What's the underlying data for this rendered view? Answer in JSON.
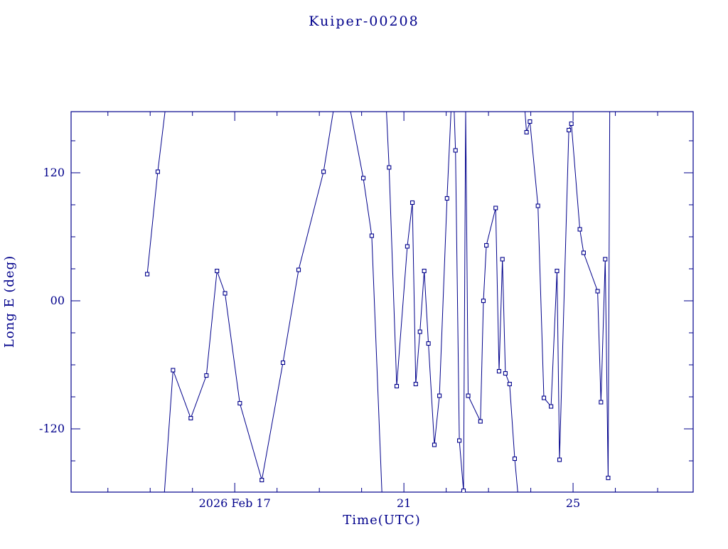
{
  "chart_data": {
    "type": "line",
    "title": "Kuiper-00208",
    "xlabel": "Time(UTC)",
    "ylabel": "Long E (deg)",
    "line_color": "#00008B",
    "marker": "open-square",
    "x_axis_unit": "day of month, 2026 Feb, UTC",
    "xlim": [
      13.13,
      27.84
    ],
    "ylim": [
      -179.3,
      177.3
    ],
    "x_major_ticks": [
      {
        "value": 17,
        "label": "2026 Feb 17"
      },
      {
        "value": 21,
        "label": "21"
      },
      {
        "value": 25,
        "label": "25"
      }
    ],
    "x_minor_tick_step_days": 1,
    "y_major_ticks": [
      {
        "value": 120,
        "label": "120"
      },
      {
        "value": 0,
        "label": "00"
      },
      {
        "value": -120,
        "label": "-120"
      }
    ],
    "y_minor_tick_step_deg": 30,
    "grid": false,
    "legend": false,
    "segments": [
      [
        [
          14.93,
          25
        ],
        [
          15.18,
          121
        ],
        [
          15.42,
          200
        ]
      ],
      [
        [
          15.3,
          -200
        ],
        [
          15.54,
          -65
        ],
        [
          15.96,
          -110
        ],
        [
          16.33,
          -70
        ],
        [
          16.58,
          28
        ],
        [
          16.77,
          7
        ],
        [
          17.12,
          -96
        ],
        [
          17.64,
          -168
        ],
        [
          18.14,
          -58
        ],
        [
          18.51,
          29
        ],
        [
          19.1,
          121
        ],
        [
          19.42,
          200
        ]
      ],
      [
        [
          19.63,
          200
        ],
        [
          20.04,
          115
        ],
        [
          20.24,
          61
        ],
        [
          20.5,
          -200
        ]
      ],
      [
        [
          20.56,
          200
        ],
        [
          20.65,
          125
        ],
        [
          20.83,
          -80
        ],
        [
          21.08,
          51
        ],
        [
          21.2,
          92
        ],
        [
          21.28,
          -78
        ],
        [
          21.38,
          -29
        ],
        [
          21.48,
          28
        ],
        [
          21.58,
          -40
        ],
        [
          21.72,
          -135
        ],
        [
          21.84,
          -89
        ],
        [
          22.02,
          96
        ],
        [
          22.14,
          200
        ]
      ],
      [
        [
          22.17,
          200
        ],
        [
          22.22,
          141
        ],
        [
          22.31,
          -131
        ],
        [
          22.41,
          -178
        ],
        [
          22.46,
          179
        ],
        [
          22.52,
          -89
        ],
        [
          22.81,
          -113
        ],
        [
          22.88,
          0
        ],
        [
          22.95,
          52
        ],
        [
          23.17,
          87
        ],
        [
          23.25,
          -66
        ],
        [
          23.33,
          39
        ],
        [
          23.4,
          -68
        ],
        [
          23.5,
          -78
        ],
        [
          23.62,
          -148
        ],
        [
          23.74,
          -200
        ]
      ],
      [
        [
          23.82,
          200
        ],
        [
          23.9,
          158
        ],
        [
          23.98,
          168
        ],
        [
          24.17,
          89
        ],
        [
          24.31,
          -91
        ],
        [
          24.48,
          -99
        ],
        [
          24.62,
          28
        ],
        [
          24.68,
          -149
        ],
        [
          24.9,
          160
        ],
        [
          24.96,
          166
        ],
        [
          25.16,
          67
        ],
        [
          25.25,
          45
        ],
        [
          25.58,
          9
        ],
        [
          25.66,
          -95
        ],
        [
          25.76,
          39
        ],
        [
          25.83,
          -166
        ],
        [
          25.87,
          200
        ]
      ]
    ]
  }
}
